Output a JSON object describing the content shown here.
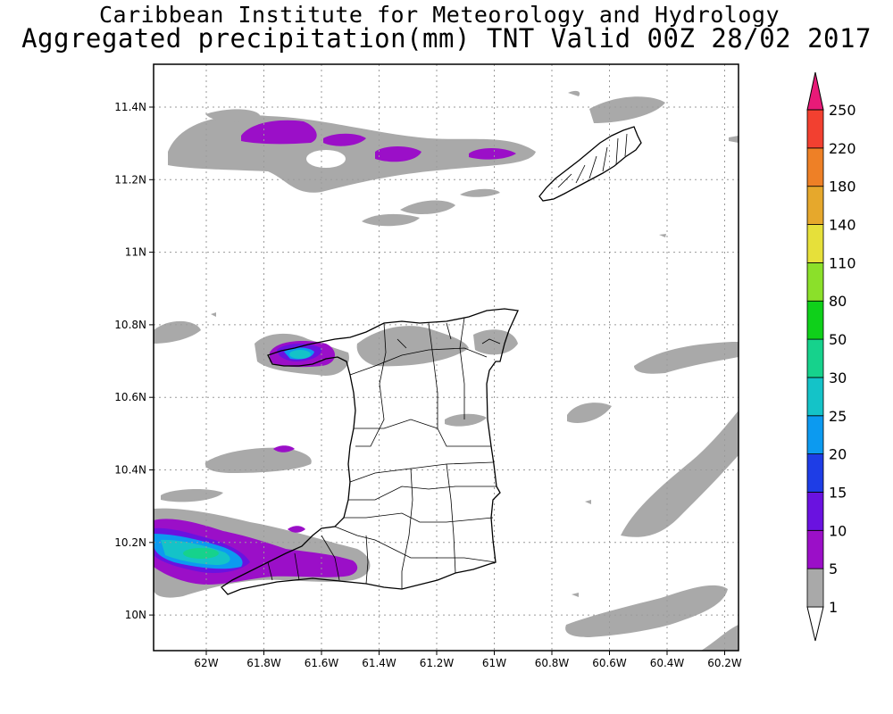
{
  "title": {
    "line1": "Caribbean Institute for Meteorology and Hydrology",
    "line2": "Aggregated precipitation(mm) TNT Valid 00Z 28/02 2017"
  },
  "map": {
    "x_ticks": [
      "62W",
      "61.8W",
      "61.6W",
      "61.4W",
      "61.2W",
      "61W",
      "60.8W",
      "60.6W",
      "60.4W",
      "60.2W"
    ],
    "y_ticks": [
      "11.4N",
      "11.2N",
      "11N",
      "10.8N",
      "10.6N",
      "10.4N",
      "10.2N",
      "10N"
    ],
    "lon_range": [
      -62.35,
      -60.15
    ],
    "lat_range": [
      9.9,
      11.5
    ],
    "grid": "dotted"
  },
  "colorbar": {
    "levels": [
      "1",
      "5",
      "10",
      "15",
      "20",
      "25",
      "30",
      "50",
      "80",
      "110",
      "140",
      "180",
      "220",
      "250"
    ],
    "colors": [
      "#ffffff",
      "#a9a9a9",
      "#9b0fc8",
      "#6a12e0",
      "#1e3de6",
      "#0c9af0",
      "#14c3c8",
      "#16d28c",
      "#0fd01a",
      "#8be02a",
      "#e6e03a",
      "#e6a82c",
      "#ee8026",
      "#f24030",
      "#e81a78"
    ]
  },
  "colors": {
    "gray": "#a9a9a9",
    "purple": "#9b0fc8",
    "violet": "#6a12e0",
    "blue": "#0c9af0",
    "teal": "#14c3c8",
    "green": "#16d28c"
  }
}
